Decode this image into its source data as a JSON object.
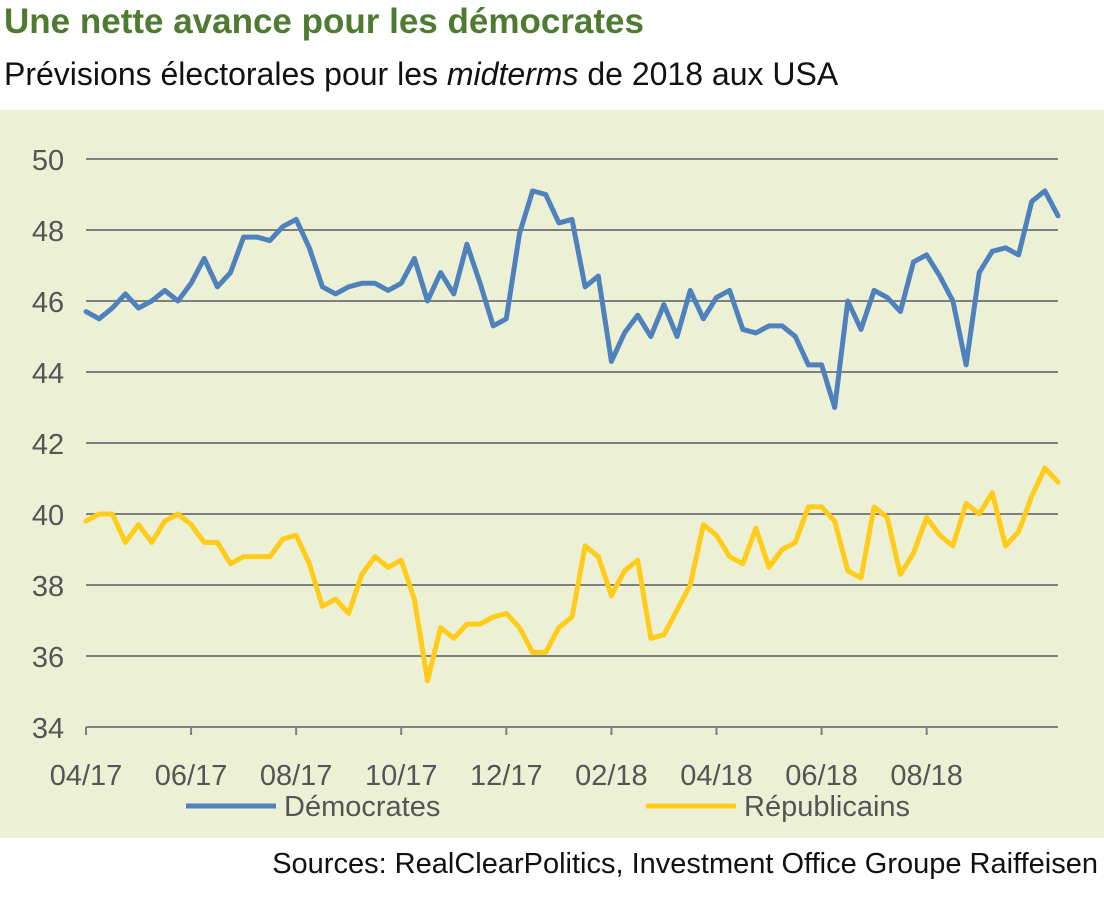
{
  "header": {
    "title": "Une nette avance pour les démocrates",
    "subtitle_before": "Prévisions électorales pour les ",
    "subtitle_italic": "midterms",
    "subtitle_after": " de 2018 aux USA"
  },
  "source": "Sources: RealClearPolitics, Investment Office Groupe Raiffeisen",
  "colors": {
    "background": "#ecf1d6",
    "grid": "#7f7f7f",
    "text": "#555555",
    "title": "#4e7a32"
  },
  "chart_data": {
    "type": "line",
    "title": "Une nette avance pour les démocrates",
    "subtitle": "Prévisions électorales pour les midterms de 2018 aux USA",
    "xlabel": "",
    "ylabel": "",
    "x_tick_labels": [
      "04/17",
      "06/17",
      "08/17",
      "10/17",
      "12/17",
      "02/18",
      "04/18",
      "06/18",
      "08/18"
    ],
    "x_tick_indices": [
      0,
      8,
      16,
      24,
      32,
      40,
      48,
      56,
      64
    ],
    "y_ticks": [
      34,
      36,
      38,
      40,
      42,
      44,
      46,
      48,
      50
    ],
    "ylim": [
      34,
      50
    ],
    "grid": true,
    "legend_position": "bottom",
    "series": [
      {
        "name": "Démocrates",
        "color": "#4f81bd",
        "values": [
          45.7,
          45.5,
          45.8,
          46.2,
          45.8,
          46.0,
          46.3,
          46.0,
          46.5,
          47.2,
          46.4,
          46.8,
          47.8,
          47.8,
          47.7,
          48.1,
          48.3,
          47.5,
          46.4,
          46.2,
          46.4,
          46.5,
          46.5,
          46.3,
          46.5,
          47.2,
          46.0,
          46.8,
          46.2,
          47.6,
          46.5,
          45.3,
          45.5,
          47.9,
          49.1,
          49.0,
          48.2,
          48.3,
          46.4,
          46.7,
          44.3,
          45.1,
          45.6,
          45.0,
          45.9,
          45.0,
          46.3,
          45.5,
          46.1,
          46.3,
          45.2,
          45.1,
          45.3,
          45.3,
          45.0,
          44.2,
          44.2,
          43.0,
          46.0,
          45.2,
          46.3,
          46.1,
          45.7,
          47.1,
          47.3,
          46.7,
          46.0,
          44.2,
          46.8,
          47.4,
          47.5,
          47.3,
          48.8,
          49.1,
          48.4
        ]
      },
      {
        "name": "Républicains",
        "color": "#ffcc1a",
        "values": [
          39.8,
          40.0,
          40.0,
          39.2,
          39.7,
          39.2,
          39.8,
          40.0,
          39.7,
          39.2,
          39.2,
          38.6,
          38.8,
          38.8,
          38.8,
          39.3,
          39.4,
          38.6,
          37.4,
          37.6,
          37.2,
          38.3,
          38.8,
          38.5,
          38.7,
          37.6,
          35.3,
          36.8,
          36.5,
          36.9,
          36.9,
          37.1,
          37.2,
          36.8,
          36.1,
          36.1,
          36.8,
          37.1,
          39.1,
          38.8,
          37.7,
          38.4,
          38.7,
          36.5,
          36.6,
          37.3,
          38.0,
          39.7,
          39.4,
          38.8,
          38.6,
          39.6,
          38.5,
          39.0,
          39.2,
          40.2,
          40.2,
          39.8,
          38.4,
          38.2,
          40.2,
          39.9,
          38.3,
          38.9,
          39.9,
          39.4,
          39.1,
          40.3,
          40.0,
          40.6,
          39.1,
          39.5,
          40.5,
          41.3,
          40.9
        ]
      }
    ]
  }
}
